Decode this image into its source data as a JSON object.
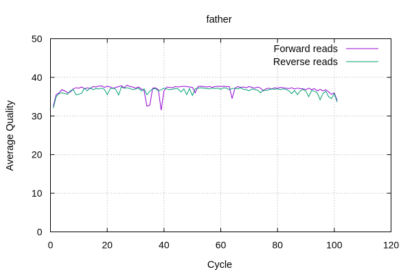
{
  "chart_data": {
    "type": "line",
    "title": "father",
    "xlabel": "Cycle",
    "ylabel": "Average Quality",
    "xlim": [
      0,
      120
    ],
    "ylim": [
      0,
      50
    ],
    "xticks": [
      0,
      20,
      40,
      60,
      80,
      100,
      120
    ],
    "yticks": [
      0,
      10,
      20,
      30,
      40,
      50
    ],
    "grid": true,
    "legend_position": "top-right",
    "series": [
      {
        "name": "Forward reads",
        "color": "#9400d3",
        "x": [
          1,
          2,
          3,
          4,
          5,
          6,
          7,
          8,
          9,
          10,
          11,
          12,
          13,
          14,
          15,
          16,
          17,
          18,
          19,
          20,
          21,
          22,
          23,
          24,
          25,
          26,
          27,
          28,
          29,
          30,
          31,
          32,
          33,
          34,
          35,
          36,
          37,
          38,
          39,
          40,
          41,
          42,
          43,
          44,
          45,
          46,
          47,
          48,
          49,
          50,
          51,
          52,
          53,
          54,
          55,
          56,
          57,
          58,
          59,
          60,
          61,
          62,
          63,
          64,
          65,
          66,
          67,
          68,
          69,
          70,
          71,
          72,
          73,
          74,
          75,
          76,
          77,
          78,
          79,
          80,
          81,
          82,
          83,
          84,
          85,
          86,
          87,
          88,
          89,
          90,
          91,
          92,
          93,
          94,
          95,
          96,
          97,
          98,
          99,
          100,
          101
        ],
        "y": [
          32.5,
          35.5,
          36,
          36.8,
          36.5,
          36,
          36.2,
          37,
          37.3,
          37.2,
          37.5,
          37,
          37.3,
          37.1,
          37.6,
          37.5,
          37.7,
          37.8,
          37.4,
          37.7,
          37.5,
          37.2,
          37.4,
          37.6,
          37.8,
          37.3,
          38,
          37.6,
          37.5,
          37.2,
          37.5,
          37,
          36.5,
          32.5,
          32.8,
          37.2,
          37.3,
          36.8,
          31.5,
          36.5,
          37.5,
          37.4,
          37.3,
          37.6,
          37.5,
          37.6,
          37.7,
          37.6,
          37.5,
          37.4,
          36,
          37.6,
          37.7,
          37.6,
          37.5,
          37.6,
          37.4,
          37.6,
          37.7,
          37.6,
          37.7,
          37.6,
          37.6,
          34.5,
          37.2,
          37.6,
          37.4,
          37.5,
          37.3,
          37.6,
          37.4,
          37.2,
          37.5,
          37.2,
          36.5,
          37.1,
          37.2,
          37,
          37.3,
          37.2,
          37.4,
          37.3,
          37.2,
          37.1,
          37.3,
          37,
          37.2,
          37.1,
          37,
          36.8,
          37.2,
          36.8,
          37.1,
          36.5,
          36.9,
          36.5,
          36.8,
          36.2,
          35.6,
          36,
          34
        ]
      },
      {
        "name": "Reverse reads",
        "color": "#009e73",
        "x": [
          1,
          2,
          3,
          4,
          5,
          6,
          7,
          8,
          9,
          10,
          11,
          12,
          13,
          14,
          15,
          16,
          17,
          18,
          19,
          20,
          21,
          22,
          23,
          24,
          25,
          26,
          27,
          28,
          29,
          30,
          31,
          32,
          33,
          34,
          35,
          36,
          37,
          38,
          39,
          40,
          41,
          42,
          43,
          44,
          45,
          46,
          47,
          48,
          49,
          50,
          51,
          52,
          53,
          54,
          55,
          56,
          57,
          58,
          59,
          60,
          61,
          62,
          63,
          64,
          65,
          66,
          67,
          68,
          69,
          70,
          71,
          72,
          73,
          74,
          75,
          76,
          77,
          78,
          79,
          80,
          81,
          82,
          83,
          84,
          85,
          86,
          87,
          88,
          89,
          90,
          91,
          92,
          93,
          94,
          95,
          96,
          97,
          98,
          99,
          100,
          101
        ],
        "y": [
          32,
          35,
          35.8,
          36,
          35.8,
          35.6,
          36.5,
          36.8,
          35.5,
          35.6,
          35.9,
          37.2,
          36.5,
          37.3,
          36.8,
          37.1,
          37,
          37.2,
          36.9,
          35.5,
          37,
          37.2,
          36.9,
          35.4,
          37.5,
          37.2,
          37.3,
          37.1,
          36.8,
          37,
          37.2,
          36.5,
          37,
          35.5,
          36.4,
          37,
          37.1,
          36.5,
          36.8,
          37.2,
          37,
          36.8,
          36.9,
          37.1,
          37,
          36.2,
          37,
          35.5,
          37.1,
          35.3,
          37.1,
          37.2,
          37.3,
          37.2,
          37.1,
          37,
          37.2,
          37.1,
          37.2,
          36.9,
          37.3,
          37.2,
          36.8,
          37.1,
          37.2,
          37,
          37.3,
          36.9,
          36.8,
          36.5,
          37,
          36.8,
          36.7,
          36,
          36.7,
          36.6,
          36.8,
          37,
          36.9,
          37,
          36.8,
          37,
          36.9,
          36.5,
          35.8,
          36.6,
          35.5,
          36.5,
          36.9,
          36.4,
          35,
          36.6,
          36.4,
          36,
          34.2,
          35.8,
          36.4,
          35,
          34.5,
          35.8,
          33.6
        ]
      }
    ]
  }
}
